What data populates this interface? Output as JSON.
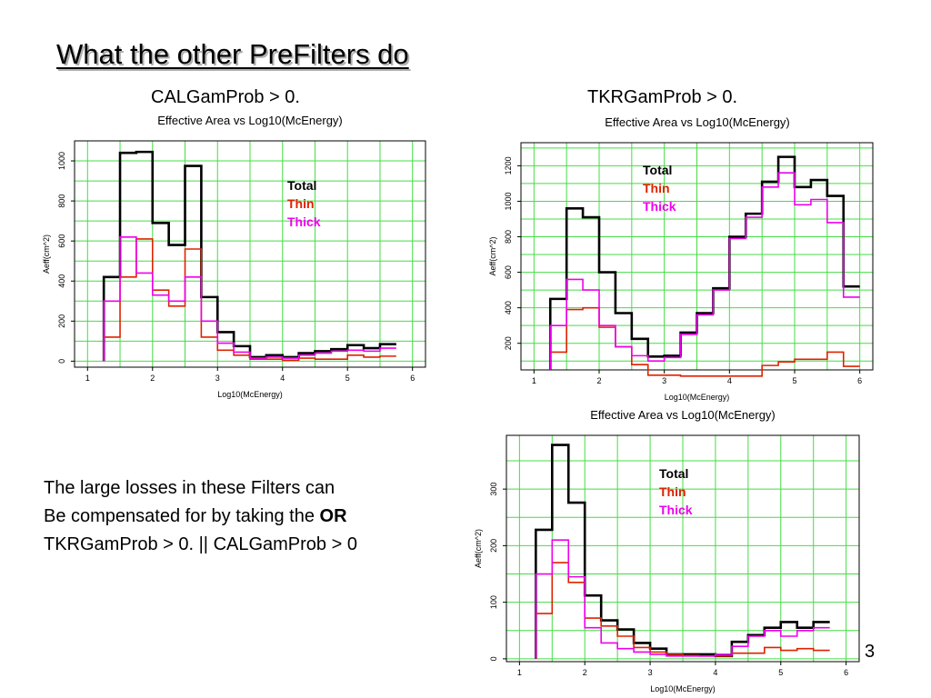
{
  "slide": {
    "title": "What the other PreFilters do",
    "captions": [
      "CALGamProb > 0.",
      "TKRGamProb > 0."
    ],
    "body_lines": [
      {
        "text": "The large losses in these Filters can",
        "bold": ""
      },
      {
        "text": "Be compensated for by taking the ",
        "bold": "OR"
      },
      {
        "text": "TKRGamProb > 0. || CALGamProb > 0",
        "bold": ""
      }
    ],
    "page_number": "3"
  },
  "colors": {
    "total": "#000000",
    "thin": "#dd2200",
    "thick": "#ee00ee",
    "grid": "#44dd44"
  },
  "chart_data": [
    {
      "type": "line",
      "step": true,
      "title": "Effective Area vs Log10(McEnergy)",
      "xlabel": "Log10(McEnergy)",
      "ylabel": "Aeff(cm^2)",
      "xlim": [
        0.8,
        6.2
      ],
      "ylim": [
        -30,
        1100
      ],
      "xticks": [
        1,
        2,
        3,
        4,
        5,
        6
      ],
      "yticks": [
        0,
        200,
        400,
        600,
        800,
        1000
      ],
      "x_edges": [
        1.25,
        1.5,
        1.75,
        2.0,
        2.25,
        2.5,
        2.75,
        3.0,
        3.25,
        3.5,
        3.75,
        4.0,
        4.25,
        4.5,
        4.75,
        5.0,
        5.25,
        5.5,
        5.75
      ],
      "series": [
        {
          "name": "Total",
          "color": "#000000",
          "values": [
            420,
            1040,
            1045,
            690,
            580,
            975,
            320,
            145,
            75,
            20,
            30,
            20,
            40,
            50,
            60,
            80,
            65,
            85
          ]
        },
        {
          "name": "Thin",
          "color": "#dd2200",
          "values": [
            120,
            420,
            610,
            355,
            275,
            560,
            120,
            55,
            30,
            10,
            10,
            5,
            15,
            10,
            10,
            30,
            20,
            25
          ]
        },
        {
          "name": "Thick",
          "color": "#ee00ee",
          "values": [
            300,
            620,
            440,
            330,
            300,
            420,
            200,
            90,
            45,
            15,
            20,
            15,
            30,
            40,
            50,
            55,
            50,
            65
          ]
        }
      ],
      "legend": "top-right"
    },
    {
      "type": "line",
      "step": true,
      "title": "Effective Area vs Log10(McEnergy)",
      "xlabel": "Log10(McEnergy)",
      "ylabel": "Aeff(cm^2)",
      "xlim": [
        0.8,
        6.2
      ],
      "ylim": [
        50,
        1330
      ],
      "xticks": [
        1,
        2,
        3,
        4,
        5,
        6
      ],
      "yticks": [
        200,
        400,
        600,
        800,
        1000,
        1200
      ],
      "x_edges": [
        1.25,
        1.5,
        1.75,
        2.0,
        2.25,
        2.5,
        2.75,
        3.0,
        3.25,
        3.5,
        3.75,
        4.0,
        4.25,
        4.5,
        4.75,
        5.0,
        5.25,
        5.5,
        5.75
      ],
      "series": [
        {
          "name": "Total",
          "color": "#000000",
          "values": [
            450,
            960,
            910,
            600,
            370,
            225,
            125,
            130,
            260,
            370,
            510,
            800,
            930,
            1110,
            1250,
            1080,
            1120,
            1030,
            520
          ]
        },
        {
          "name": "Thin",
          "color": "#dd2200",
          "values": [
            150,
            390,
            400,
            290,
            180,
            80,
            20,
            20,
            15,
            15,
            15,
            15,
            15,
            75,
            95,
            110,
            110,
            150,
            70
          ]
        },
        {
          "name": "Thick",
          "color": "#ee00ee",
          "values": [
            300,
            560,
            500,
            300,
            180,
            130,
            100,
            120,
            250,
            360,
            500,
            790,
            910,
            1080,
            1160,
            980,
            1010,
            880,
            460
          ]
        }
      ],
      "legend": "top-left"
    },
    {
      "type": "line",
      "step": true,
      "title": "Effective Area vs Log10(McEnergy)",
      "xlabel": "Log10(McEnergy)",
      "ylabel": "Aeff(cm^2)",
      "xlim": [
        0.8,
        6.2
      ],
      "ylim": [
        -5,
        395
      ],
      "xticks": [
        1,
        2,
        3,
        4,
        5,
        6
      ],
      "yticks": [
        0,
        100,
        200,
        300
      ],
      "x_edges": [
        1.25,
        1.5,
        1.75,
        2.0,
        2.25,
        2.5,
        2.75,
        3.0,
        3.25,
        3.5,
        3.75,
        4.0,
        4.25,
        4.5,
        4.75,
        5.0,
        5.25,
        5.5,
        5.75
      ],
      "series": [
        {
          "name": "Total",
          "color": "#000000",
          "values": [
            228,
            378,
            276,
            112,
            68,
            52,
            28,
            18,
            8,
            8,
            8,
            5,
            30,
            42,
            55,
            65,
            55,
            65
          ]
        },
        {
          "name": "Thin",
          "color": "#dd2200",
          "values": [
            80,
            170,
            135,
            72,
            58,
            40,
            20,
            12,
            8,
            6,
            5,
            5,
            10,
            10,
            20,
            15,
            18,
            15
          ]
        },
        {
          "name": "Thick",
          "color": "#ee00ee",
          "values": [
            150,
            210,
            145,
            55,
            28,
            18,
            12,
            8,
            5,
            5,
            5,
            8,
            22,
            40,
            50,
            40,
            50,
            55
          ]
        }
      ],
      "legend": "top-right"
    }
  ]
}
